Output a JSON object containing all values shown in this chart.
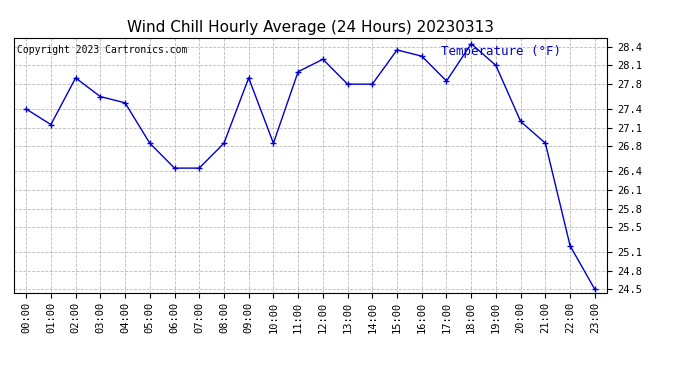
{
  "title": "Wind Chill Hourly Average (24 Hours) 20230313",
  "copyright": "Copyright 2023 Cartronics.com",
  "ylabel": "Temperature (°F)",
  "hours": [
    "00:00",
    "01:00",
    "02:00",
    "03:00",
    "04:00",
    "05:00",
    "06:00",
    "07:00",
    "08:00",
    "09:00",
    "10:00",
    "11:00",
    "12:00",
    "13:00",
    "14:00",
    "15:00",
    "16:00",
    "17:00",
    "18:00",
    "19:00",
    "20:00",
    "21:00",
    "22:00",
    "23:00"
  ],
  "values": [
    27.4,
    27.15,
    27.9,
    27.6,
    27.5,
    26.85,
    26.45,
    26.45,
    26.85,
    27.9,
    26.85,
    28.0,
    28.2,
    27.8,
    27.8,
    28.35,
    28.25,
    27.85,
    28.45,
    28.1,
    27.2,
    26.85,
    25.2,
    24.5
  ],
  "line_color": "#0000cc",
  "marker": "+",
  "background_color": "#ffffff",
  "grid_color": "#aaaaaa",
  "ylim_min": 24.45,
  "ylim_max": 28.55,
  "yticks": [
    24.5,
    24.8,
    25.1,
    25.5,
    25.8,
    26.1,
    26.4,
    26.8,
    27.1,
    27.4,
    27.8,
    28.1,
    28.4
  ],
  "title_fontsize": 11,
  "copyright_fontsize": 7,
  "ylabel_fontsize": 9,
  "tick_fontsize": 7.5
}
